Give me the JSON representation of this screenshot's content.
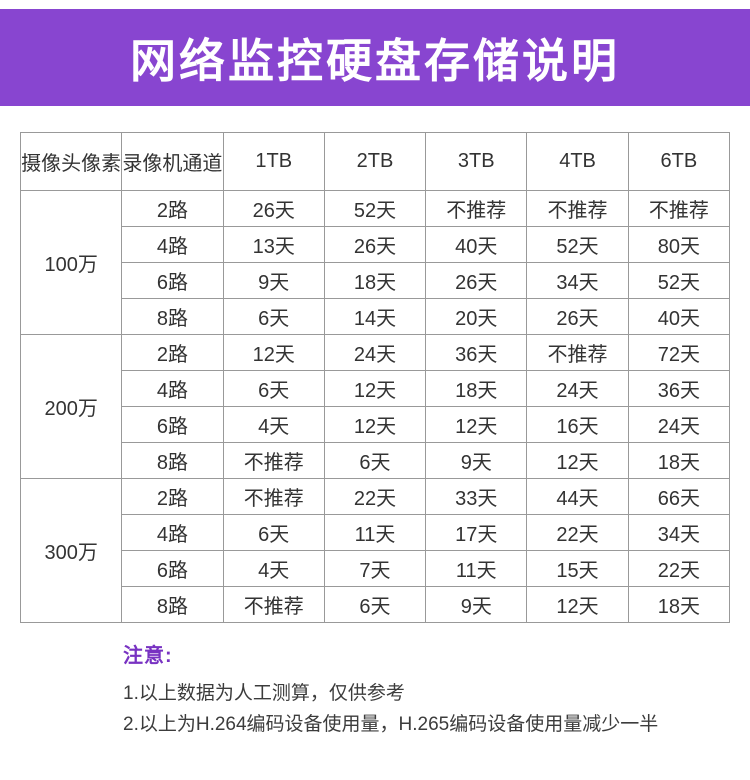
{
  "title": "网络监控硬盘存储说明",
  "chart_data": {
    "type": "table",
    "title": "网络监控硬盘存储说明",
    "columns": [
      "摄像头像素",
      "录像机通道",
      "1TB",
      "2TB",
      "3TB",
      "4TB",
      "6TB"
    ],
    "rows": [
      [
        "100万",
        "2路",
        "26天",
        "52天",
        "不推荐",
        "不推荐",
        "不推荐"
      ],
      [
        "100万",
        "4路",
        "13天",
        "26天",
        "40天",
        "52天",
        "80天"
      ],
      [
        "100万",
        "6路",
        "9天",
        "18天",
        "26天",
        "34天",
        "52天"
      ],
      [
        "100万",
        "8路",
        "6天",
        "14天",
        "20天",
        "26天",
        "40天"
      ],
      [
        "200万",
        "2路",
        "12天",
        "24天",
        "36天",
        "不推荐",
        "72天"
      ],
      [
        "200万",
        "4路",
        "6天",
        "12天",
        "18天",
        "24天",
        "36天"
      ],
      [
        "200万",
        "6路",
        "4天",
        "12天",
        "12天",
        "16天",
        "24天"
      ],
      [
        "200万",
        "8路",
        "不推荐",
        "6天",
        "9天",
        "12天",
        "18天"
      ],
      [
        "300万",
        "2路",
        "不推荐",
        "22天",
        "33天",
        "44天",
        "66天"
      ],
      [
        "300万",
        "4路",
        "6天",
        "11天",
        "17天",
        "22天",
        "34天"
      ],
      [
        "300万",
        "6路",
        "4天",
        "7天",
        "11天",
        "15天",
        "22天"
      ],
      [
        "300万",
        "8路",
        "不推荐",
        "6天",
        "9天",
        "12天",
        "18天"
      ]
    ]
  },
  "notes": {
    "label": "注意:",
    "items": [
      "1.以上数据为人工测算，仅供参考",
      "2.以上为H.264编码设备使用量，H.265编码设备使用量减少一半"
    ]
  },
  "colors": {
    "banner": "#8845d0",
    "note_label": "#7832c2",
    "table_border": "#999999",
    "table_text": "#333333"
  }
}
